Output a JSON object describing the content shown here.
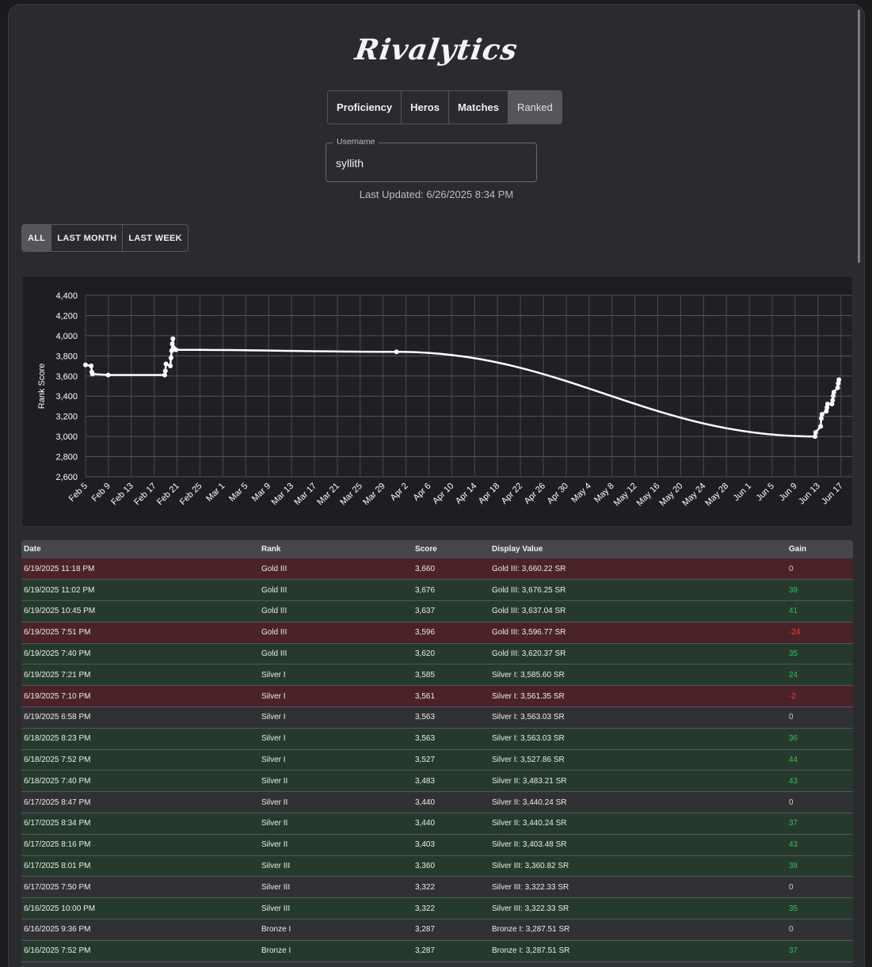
{
  "app": {
    "logo": "Rivalytics"
  },
  "tabs": [
    {
      "label": "Proficiency"
    },
    {
      "label": "Heros"
    },
    {
      "label": "Matches"
    },
    {
      "label": "Ranked"
    }
  ],
  "active_tab": "Ranked",
  "username": {
    "legend": "Username",
    "value": "syllith"
  },
  "last_updated": "Last Updated: 6/26/2025 8:34 PM",
  "range_tabs": [
    {
      "label": "ALL"
    },
    {
      "label": "LAST MONTH"
    },
    {
      "label": "LAST WEEK"
    }
  ],
  "active_range": "ALL",
  "colors": {
    "loss_row": "#4a2228",
    "win_row": "#253a2c",
    "neutral_row": "#303135",
    "gain_positive": "#3bbd55",
    "gain_negative": "#ff3b3b",
    "line": "#ffffff"
  },
  "chart_data": {
    "type": "line",
    "title": "",
    "xlabel": "",
    "ylabel": "Rank Score",
    "ylim": [
      2600,
      4400
    ],
    "yticks": [
      "4,400",
      "4,200",
      "4,000",
      "3,800",
      "3,600",
      "3,400",
      "3,200",
      "3,000",
      "2,800",
      "2,600"
    ],
    "xticks": [
      "Feb 5",
      "Feb 9",
      "Feb 13",
      "Feb 17",
      "Feb 21",
      "Feb 25",
      "Mar 1",
      "Mar 5",
      "Mar 9",
      "Mar 13",
      "Mar 17",
      "Mar 21",
      "Mar 25",
      "Mar 29",
      "Apr 2",
      "Apr 6",
      "Apr 10",
      "Apr 14",
      "Apr 18",
      "Apr 22",
      "Apr 26",
      "Apr 30",
      "May 4",
      "May 8",
      "May 12",
      "May 16",
      "May 20",
      "May 24",
      "May 28",
      "Jun 1",
      "Jun 5",
      "Jun 9",
      "Jun 13",
      "Jun 17"
    ],
    "grid": true,
    "series": [
      {
        "points": [
          {
            "x": "2025-02-05",
            "y": 3710
          },
          {
            "x": "2025-02-06",
            "y": 3700
          },
          {
            "x": "2025-02-06",
            "y": 3640
          },
          {
            "x": "2025-02-06",
            "y": 3620
          },
          {
            "x": "2025-02-09",
            "y": 3610
          },
          {
            "x": "2025-02-19",
            "y": 3610
          },
          {
            "x": "2025-02-19",
            "y": 3650
          },
          {
            "x": "2025-02-19",
            "y": 3720
          },
          {
            "x": "2025-02-20",
            "y": 3700
          },
          {
            "x": "2025-02-20",
            "y": 3780
          },
          {
            "x": "2025-02-20",
            "y": 3850
          },
          {
            "x": "2025-02-20",
            "y": 3920
          },
          {
            "x": "2025-02-20",
            "y": 3970
          },
          {
            "x": "2025-02-20",
            "y": 3880
          },
          {
            "x": "2025-02-21",
            "y": 3860
          },
          {
            "x": "2025-04-01",
            "y": 3840
          },
          {
            "x": "2025-06-14",
            "y": 3000
          },
          {
            "x": "2025-06-14",
            "y": 3040
          },
          {
            "x": "2025-06-15",
            "y": 3100
          },
          {
            "x": "2025-06-15",
            "y": 3180
          },
          {
            "x": "2025-06-15",
            "y": 3220
          },
          {
            "x": "2025-06-16",
            "y": 3250
          },
          {
            "x": "2025-06-16",
            "y": 3287
          },
          {
            "x": "2025-06-16",
            "y": 3322
          },
          {
            "x": "2025-06-17",
            "y": 3322
          },
          {
            "x": "2025-06-17",
            "y": 3360
          },
          {
            "x": "2025-06-17",
            "y": 3403
          },
          {
            "x": "2025-06-17",
            "y": 3440
          },
          {
            "x": "2025-06-18",
            "y": 3483
          },
          {
            "x": "2025-06-18",
            "y": 3527
          },
          {
            "x": "2025-06-18",
            "y": 3563
          }
        ]
      }
    ]
  },
  "table": {
    "columns": [
      "Date",
      "Rank",
      "Score",
      "Display Value",
      "Gain"
    ],
    "rows": [
      {
        "date": "6/19/2025 11:18 PM",
        "rank": "Gold III",
        "score": "3,660",
        "display": "Gold III: 3,660.22 SR",
        "gain": "0",
        "type": "loss"
      },
      {
        "date": "6/19/2025 11:02 PM",
        "rank": "Gold III",
        "score": "3,676",
        "display": "Gold III: 3,676.25 SR",
        "gain": "39",
        "type": "win"
      },
      {
        "date": "6/19/2025 10:45 PM",
        "rank": "Gold III",
        "score": "3,637",
        "display": "Gold III: 3,637.04 SR",
        "gain": "41",
        "type": "win"
      },
      {
        "date": "6/19/2025 7:51 PM",
        "rank": "Gold III",
        "score": "3,596",
        "display": "Gold III: 3,596.77 SR",
        "gain": "-24",
        "type": "loss"
      },
      {
        "date": "6/19/2025 7:40 PM",
        "rank": "Gold III",
        "score": "3,620",
        "display": "Gold III: 3,620.37 SR",
        "gain": "35",
        "type": "win"
      },
      {
        "date": "6/19/2025 7:21 PM",
        "rank": "Silver I",
        "score": "3,585",
        "display": "Silver I: 3,585.60 SR",
        "gain": "24",
        "type": "win"
      },
      {
        "date": "6/19/2025 7:10 PM",
        "rank": "Silver I",
        "score": "3,561",
        "display": "Silver I: 3,561.35 SR",
        "gain": "-2",
        "type": "loss"
      },
      {
        "date": "6/19/2025 6:58 PM",
        "rank": "Silver I",
        "score": "3,563",
        "display": "Silver I: 3,563.03 SR",
        "gain": "0",
        "type": "neutral"
      },
      {
        "date": "6/18/2025 8:23 PM",
        "rank": "Silver I",
        "score": "3,563",
        "display": "Silver I: 3,563.03 SR",
        "gain": "36",
        "type": "win"
      },
      {
        "date": "6/18/2025 7:52 PM",
        "rank": "Silver I",
        "score": "3,527",
        "display": "Silver I: 3,527.86 SR",
        "gain": "44",
        "type": "win"
      },
      {
        "date": "6/18/2025 7:40 PM",
        "rank": "Silver II",
        "score": "3,483",
        "display": "Silver II: 3,483.21 SR",
        "gain": "43",
        "type": "win"
      },
      {
        "date": "6/17/2025 8:47 PM",
        "rank": "Silver II",
        "score": "3,440",
        "display": "Silver II: 3,440.24 SR",
        "gain": "0",
        "type": "neutral"
      },
      {
        "date": "6/17/2025 8:34 PM",
        "rank": "Silver II",
        "score": "3,440",
        "display": "Silver II: 3,440.24 SR",
        "gain": "37",
        "type": "win"
      },
      {
        "date": "6/17/2025 8:16 PM",
        "rank": "Silver II",
        "score": "3,403",
        "display": "Silver II: 3,403.48 SR",
        "gain": "43",
        "type": "win"
      },
      {
        "date": "6/17/2025 8:01 PM",
        "rank": "Silver III",
        "score": "3,360",
        "display": "Silver III: 3,360.82 SR",
        "gain": "38",
        "type": "win"
      },
      {
        "date": "6/17/2025 7:50 PM",
        "rank": "Silver III",
        "score": "3,322",
        "display": "Silver III: 3,322.33 SR",
        "gain": "0",
        "type": "neutral"
      },
      {
        "date": "6/16/2025 10:00 PM",
        "rank": "Silver III",
        "score": "3,322",
        "display": "Silver III: 3,322.33 SR",
        "gain": "35",
        "type": "win"
      },
      {
        "date": "6/16/2025 9:36 PM",
        "rank": "Bronze I",
        "score": "3,287",
        "display": "Bronze I: 3,287.51 SR",
        "gain": "0",
        "type": "neutral"
      },
      {
        "date": "6/16/2025 7:52 PM",
        "rank": "Bronze I",
        "score": "3,287",
        "display": "Bronze I: 3,287.51 SR",
        "gain": "37",
        "type": "win"
      },
      {
        "date": "",
        "rank": "",
        "score": "",
        "display": "",
        "gain": "",
        "type": "neutral"
      }
    ]
  }
}
